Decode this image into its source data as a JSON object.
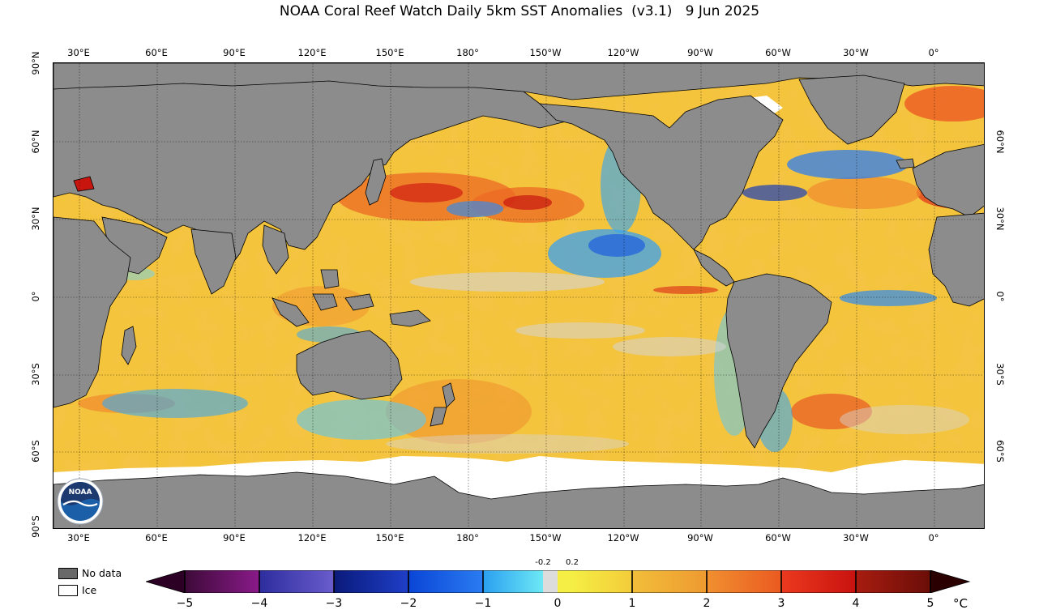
{
  "title": "NOAA Coral Reef Watch Daily 5km SST Anomalies  (v3.1)   9 Jun 2025",
  "map": {
    "lon_labels": [
      "30°E",
      "60°E",
      "90°E",
      "120°E",
      "150°E",
      "180°",
      "150°W",
      "120°W",
      "90°W",
      "60°W",
      "30°W",
      "0°"
    ],
    "lat_labels_left": [
      "90°N",
      "60°N",
      "30°N",
      "0°",
      "30°S",
      "60°S",
      "90°S"
    ],
    "lat_labels_right": [
      "60°N",
      "30°N",
      "0°",
      "30°S",
      "60°S"
    ],
    "colors": {
      "land": "#8c8c8c",
      "ice": "#ffffff",
      "ocean_base": "#f2c23a"
    }
  },
  "legend": {
    "no_data_label": "No data",
    "ice_label": "Ice",
    "no_data_color": "#696969",
    "ice_color": "#ffffff"
  },
  "colorbar": {
    "ticks": [
      "−5",
      "−4",
      "−3",
      "−2",
      "−1",
      "0",
      "1",
      "2",
      "3",
      "4",
      "5"
    ],
    "small_labels": [
      "-0.2",
      "0.2"
    ],
    "unit": "°C",
    "colors": [
      "#2b0024",
      "#5c0a5a",
      "#8a1a8a",
      "#2d2d9e",
      "#5b52c2",
      "#0a1a8c",
      "#1f3fc8",
      "#0a45d6",
      "#2a7cf2",
      "#2aa7f0",
      "#6de0f5",
      "#d9d9d9",
      "#f5ea3e",
      "#f3d03a",
      "#f0b23a",
      "#f09030",
      "#ee6a22",
      "#eb3a1e",
      "#d81414",
      "#a81c10",
      "#700e08"
    ]
  },
  "logo_text": "NOAA"
}
